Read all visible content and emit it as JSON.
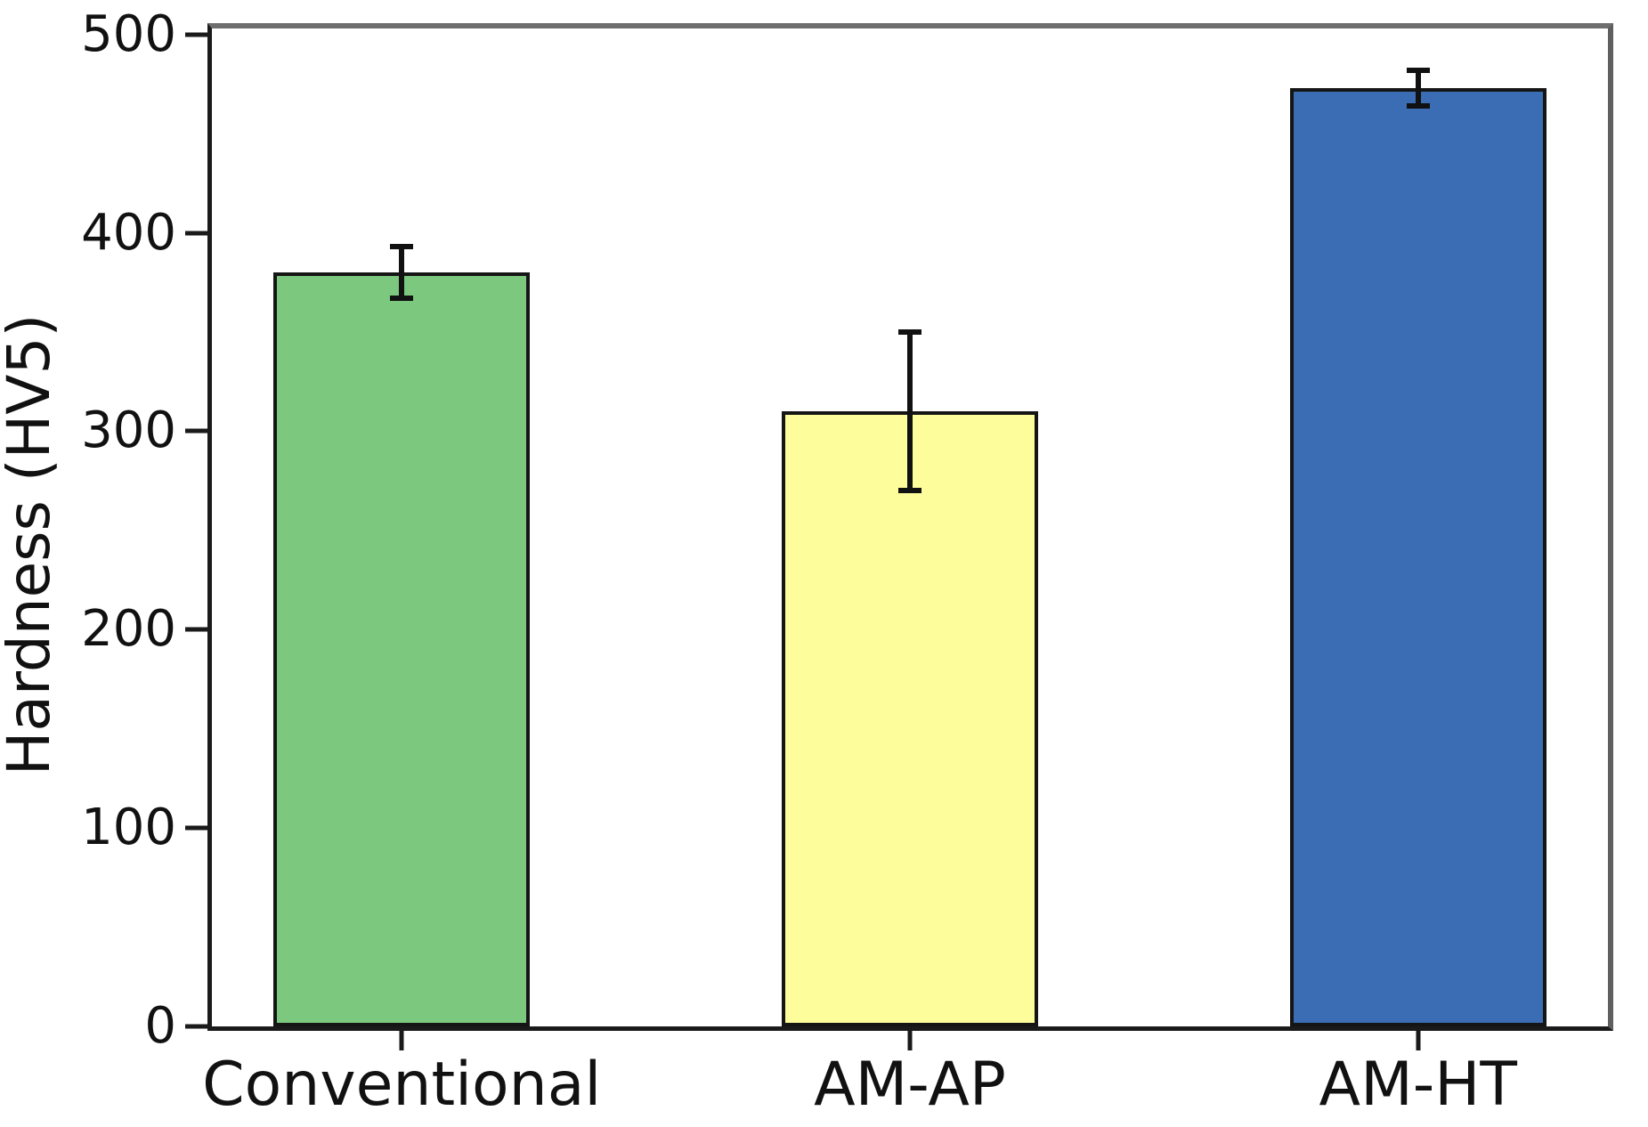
{
  "figure": {
    "background": "#ffffff"
  },
  "chart_data": {
    "type": "bar",
    "title": "",
    "xlabel": "",
    "ylabel": "Hardness (HV5)",
    "categories": [
      "Conventional",
      "AM-AP",
      "AM-HT"
    ],
    "values": [
      380,
      310,
      473
    ],
    "error_bars": [
      13,
      40,
      9
    ],
    "series": [
      {
        "name": "Hardness",
        "values": [
          380,
          310,
          473
        ],
        "errors": [
          13,
          40,
          9
        ]
      }
    ],
    "bar_colors": [
      "#7cc87e",
      "#fdfd9c",
      "#3a6db3"
    ],
    "bar_edge_color": "#151515",
    "error_bar_color": "#111111",
    "yticks": [
      0,
      100,
      200,
      300,
      400,
      500
    ],
    "ytick_labels": [
      "0",
      "100",
      "200",
      "300",
      "400",
      "500"
    ],
    "ylim": [
      0,
      503
    ],
    "grid": false,
    "legend": false,
    "spine_colors": {
      "left": "#1a1a1a",
      "bottom": "#1a1a1a",
      "top": "#6e6e6e",
      "right": "#5f5f5f"
    }
  }
}
